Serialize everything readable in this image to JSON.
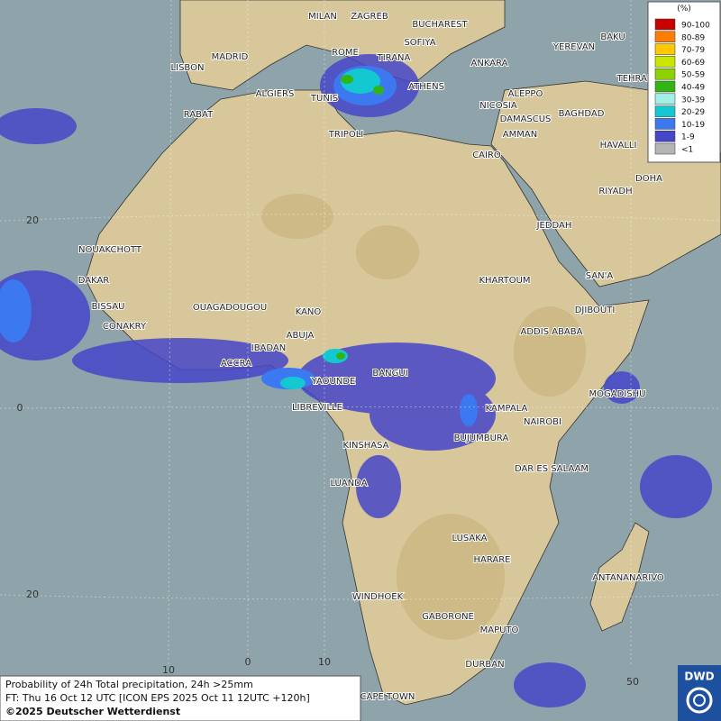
{
  "cities": [
    "MILAN",
    "ZAGREB",
    "BUCHAREST",
    "SOFIYA",
    "ROME",
    "TIRANA",
    "MADRID",
    "LISBON",
    "ANKARA",
    "BAKU",
    "YEREVAN",
    "TEHRAN",
    "ATHENS",
    "ALGIERS",
    "TUNIS",
    "ALEPPO",
    "RABAT",
    "NICOSIA",
    "DAMASCUS",
    "BAGHDAD",
    "AMMAN",
    "TRIPOLI",
    "HAVALLI",
    "CAIRO",
    "DOHA",
    "RIYADH",
    "JEDDAH",
    "NOUAKCHOTT",
    "SAN'A",
    "DAKAR",
    "KHARTOUM",
    "BISSAU",
    "OUAGADOUGOU",
    "KANO",
    "DJIBOUTI",
    "CONAKRY",
    "ABUJA",
    "ADDIS ABABA",
    "IBADAN",
    "ACCRA",
    "BANGUI",
    "YAOUNDE",
    "MOGADISHU",
    "LIBREVILLE",
    "KAMPALA",
    "NAIROBI",
    "BUJUMBURA",
    "KINSHASA",
    "DAR ES SALAAM",
    "LUANDA",
    "LUSAKA",
    "HARARE",
    "ANTANANARIVO",
    "WINDHOEK",
    "GABORONE",
    "MAPUTO",
    "DURBAN",
    "CAPE TOWN"
  ],
  "grid_labels": [
    "20",
    "0",
    "20",
    "10",
    "0",
    "10",
    "50"
  ],
  "legend": {
    "title": "(%)",
    "items": [
      {
        "label": "90-100",
        "color": "#c80000"
      },
      {
        "label": "80-89",
        "color": "#ff7d00"
      },
      {
        "label": "70-79",
        "color": "#ffc800"
      },
      {
        "label": "60-69",
        "color": "#c8e600"
      },
      {
        "label": "50-59",
        "color": "#8cd200"
      },
      {
        "label": "40-49",
        "color": "#32b414"
      },
      {
        "label": "30-39",
        "color": "#a0f0e6"
      },
      {
        "label": "20-29",
        "color": "#14c8d2"
      },
      {
        "label": "10-19",
        "color": "#3c78f0"
      },
      {
        "label": "1-9",
        "color": "#4646c8"
      },
      {
        "label": "<1",
        "color": "#b4b4b4"
      }
    ]
  },
  "caption": {
    "lines": [
      "Probability of 24h Total precipitation, 24h >25mm",
      "FT: Thu 16 Oct 12 UTC [ICON EPS 2025 Oct 11 12UTC +120h]",
      "©2025 Deutscher Wetterdienst"
    ]
  },
  "logo": "DWD"
}
